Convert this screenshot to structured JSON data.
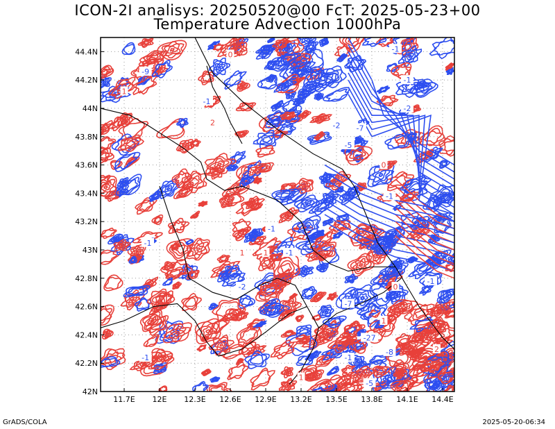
{
  "title_line1": "ICON-2I analisys: 20250520@00 FcT: 2025-05-23+00",
  "title_line2": "Temperature Advection 1000hPa",
  "footer_left": "GrADS/COLA",
  "footer_right": "2025-05-20-06:34",
  "map": {
    "lat_ticks": [
      "44.4N",
      "44.2N",
      "44N",
      "43.8N",
      "43.6N",
      "43.4N",
      "43.2N",
      "43N",
      "42.8N",
      "42.6N",
      "42.4N",
      "42.2N",
      "42N"
    ],
    "lon_ticks": [
      "11.7E",
      "12E",
      "12.3E",
      "12.6E",
      "12.9E",
      "13.2E",
      "13.5E",
      "13.8E",
      "14.1E",
      "14.4E"
    ],
    "lat_range": [
      42.0,
      44.5
    ],
    "lon_range": [
      11.5,
      14.5
    ],
    "colors": {
      "positive": "#e8403a",
      "negative": "#2d4ef0",
      "grid": "#9a9a9a",
      "border": "#000000"
    },
    "contour_labels": [
      {
        "text": "-9",
        "lon": 11.88,
        "lat": 44.26,
        "sign": "neg"
      },
      {
        "text": "-1",
        "lon": 14.0,
        "lat": 44.42,
        "sign": "neg"
      },
      {
        "text": "-1",
        "lon": 14.1,
        "lat": 44.2,
        "sign": "neg"
      },
      {
        "text": "-2",
        "lon": 14.1,
        "lat": 44.0,
        "sign": "neg"
      },
      {
        "text": "-7",
        "lon": 13.7,
        "lat": 43.86,
        "sign": "neg"
      },
      {
        "text": "-5",
        "lon": 13.6,
        "lat": 43.74,
        "sign": "neg"
      },
      {
        "text": "0",
        "lon": 12.6,
        "lat": 44.38,
        "sign": "pos"
      },
      {
        "text": "1",
        "lon": 11.7,
        "lat": 44.12,
        "sign": "pos"
      },
      {
        "text": "-1",
        "lon": 12.4,
        "lat": 44.05,
        "sign": "neg"
      },
      {
        "text": "-2",
        "lon": 13.5,
        "lat": 43.88,
        "sign": "neg"
      },
      {
        "text": "0",
        "lon": 13.9,
        "lat": 43.6,
        "sign": "pos"
      },
      {
        "text": "-1",
        "lon": 13.95,
        "lat": 43.38,
        "sign": "neg"
      },
      {
        "text": "-1",
        "lon": 12.95,
        "lat": 43.15,
        "sign": "neg"
      },
      {
        "text": "-1",
        "lon": 13.1,
        "lat": 42.98,
        "sign": "neg"
      },
      {
        "text": "1",
        "lon": 12.7,
        "lat": 42.98,
        "sign": "pos"
      },
      {
        "text": "1",
        "lon": 12.9,
        "lat": 42.98,
        "sign": "pos"
      },
      {
        "text": "-1",
        "lon": 14.3,
        "lat": 42.78,
        "sign": "neg"
      },
      {
        "text": "0",
        "lon": 14.0,
        "lat": 42.74,
        "sign": "pos"
      },
      {
        "text": "-7",
        "lon": 13.6,
        "lat": 42.62,
        "sign": "neg"
      },
      {
        "text": "-2",
        "lon": 12.7,
        "lat": 42.74,
        "sign": "neg"
      },
      {
        "text": "1",
        "lon": 13.9,
        "lat": 42.5,
        "sign": "pos"
      },
      {
        "text": "-27",
        "lon": 13.78,
        "lat": 42.38,
        "sign": "neg"
      },
      {
        "text": "-8",
        "lon": 13.95,
        "lat": 42.28,
        "sign": "neg"
      },
      {
        "text": "-1",
        "lon": 13.6,
        "lat": 42.24,
        "sign": "neg"
      },
      {
        "text": "-1",
        "lon": 11.88,
        "lat": 42.24,
        "sign": "neg"
      },
      {
        "text": "1",
        "lon": 13.2,
        "lat": 42.1,
        "sign": "pos"
      },
      {
        "text": "-5",
        "lon": 13.78,
        "lat": 42.06,
        "sign": "neg"
      },
      {
        "text": "-1",
        "lon": 11.9,
        "lat": 43.05,
        "sign": "neg"
      },
      {
        "text": "2",
        "lon": 14.35,
        "lat": 42.3,
        "sign": "pos"
      },
      {
        "text": "2",
        "lon": 12.45,
        "lat": 43.9,
        "sign": "pos"
      }
    ]
  }
}
